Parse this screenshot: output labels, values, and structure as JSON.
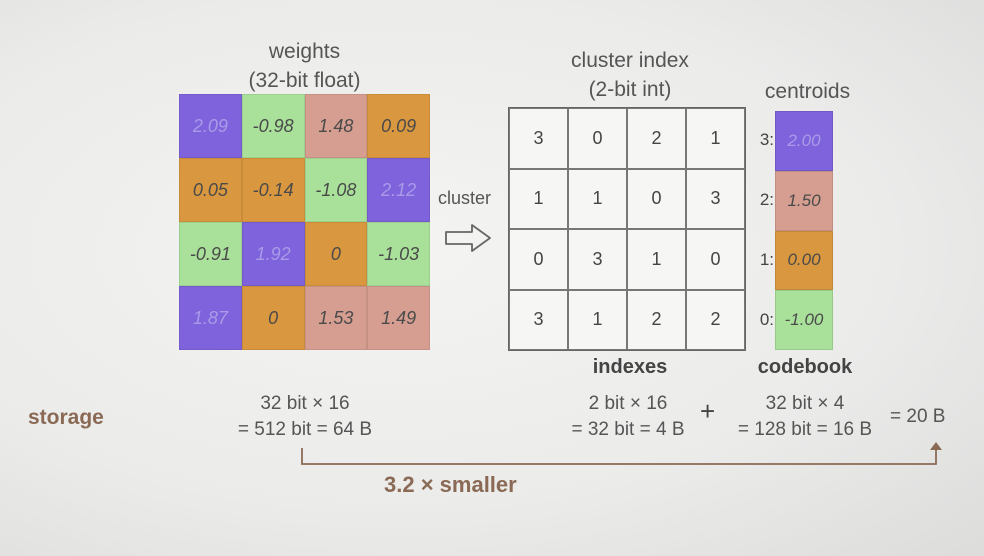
{
  "colors": {
    "c0": "#a9e19a",
    "c1": "#d9973f",
    "c2": "#d59e90",
    "c3": "#7f63dc",
    "accent": "#8a6a55"
  },
  "weights": {
    "title_line1": "weights",
    "title_line2": "(32-bit float)",
    "cells": [
      {
        "v": "2.09",
        "c": 3
      },
      {
        "v": "-0.98",
        "c": 0
      },
      {
        "v": "1.48",
        "c": 2
      },
      {
        "v": "0.09",
        "c": 1
      },
      {
        "v": "0.05",
        "c": 1
      },
      {
        "v": "-0.14",
        "c": 1
      },
      {
        "v": "-1.08",
        "c": 0
      },
      {
        "v": "2.12",
        "c": 3
      },
      {
        "v": "-0.91",
        "c": 0
      },
      {
        "v": "1.92",
        "c": 3
      },
      {
        "v": "0",
        "c": 1
      },
      {
        "v": "-1.03",
        "c": 0
      },
      {
        "v": "1.87",
        "c": 3
      },
      {
        "v": "0",
        "c": 1
      },
      {
        "v": "1.53",
        "c": 2
      },
      {
        "v": "1.49",
        "c": 2
      }
    ]
  },
  "cluster_label": "cluster",
  "cluster_index": {
    "title_line1": "cluster index",
    "title_line2": "(2-bit int)",
    "cells": [
      "3",
      "0",
      "2",
      "1",
      "1",
      "1",
      "0",
      "3",
      "0",
      "3",
      "1",
      "0",
      "3",
      "1",
      "2",
      "2"
    ],
    "caption": "indexes"
  },
  "centroids": {
    "title": "centroids",
    "labels": [
      "3:",
      "2:",
      "1:",
      "0:"
    ],
    "values": [
      "2.00",
      "1.50",
      "0.00",
      "-1.00"
    ],
    "caption": "codebook"
  },
  "storage": {
    "label": "storage",
    "weights_line1": "32 bit × 16",
    "weights_line2": "= 512 bit = 64 B",
    "indexes_line1": "2 bit × 16",
    "indexes_line2": "= 32 bit = 4 B",
    "plus": "+",
    "codebook_line1": "32 bit × 4",
    "codebook_line2": "= 128 bit = 16 B",
    "total": "= 20 B",
    "ratio": "3.2 × smaller"
  }
}
